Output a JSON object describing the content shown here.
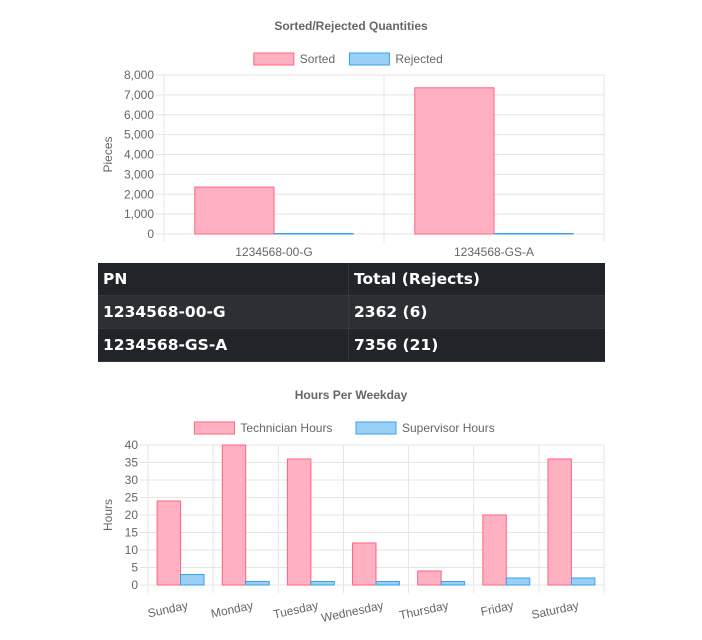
{
  "colors": {
    "sorted_fill": "#ffb1c1",
    "sorted_stroke": "#ff6384",
    "rejected_fill": "#9ad0f5",
    "rejected_stroke": "#36a2eb",
    "grid": "#e5e5e5",
    "table_bg": "#212529"
  },
  "chart_data": [
    {
      "type": "bar",
      "title": "Sorted/Rejected Quantities",
      "ylabel": "Pieces",
      "xlabel": "",
      "categories": [
        "1234568-00-G",
        "1234568-GS-A"
      ],
      "series": [
        {
          "name": "Sorted",
          "values": [
            2362,
            7356
          ]
        },
        {
          "name": "Rejected",
          "values": [
            6,
            21
          ]
        }
      ],
      "ylim": [
        0,
        8000
      ],
      "yticks": [
        "0",
        "1,000",
        "2,000",
        "3,000",
        "4,000",
        "5,000",
        "6,000",
        "7,000",
        "8,000"
      ],
      "grid": true,
      "legend": "top"
    },
    {
      "type": "bar",
      "title": "Hours Per Weekday",
      "ylabel": "Hours",
      "xlabel": "",
      "categories": [
        "Sunday",
        "Monday",
        "Tuesday",
        "Wednesday",
        "Thursday",
        "Friday",
        "Saturday"
      ],
      "series": [
        {
          "name": "Technician Hours",
          "values": [
            24,
            40,
            36,
            12,
            4,
            20,
            36
          ]
        },
        {
          "name": "Supervisor Hours",
          "values": [
            3,
            1,
            1,
            1,
            1,
            2,
            2
          ]
        }
      ],
      "ylim": [
        0,
        40
      ],
      "yticks": [
        "0",
        "5",
        "10",
        "15",
        "20",
        "25",
        "30",
        "35",
        "40"
      ],
      "grid": true,
      "legend": "top"
    }
  ],
  "table": {
    "headers": [
      "PN",
      "Total (Rejects)"
    ],
    "rows": [
      [
        "1234568-00-G",
        "2362 (6)"
      ],
      [
        "1234568-GS-A",
        "7356 (21)"
      ]
    ]
  }
}
